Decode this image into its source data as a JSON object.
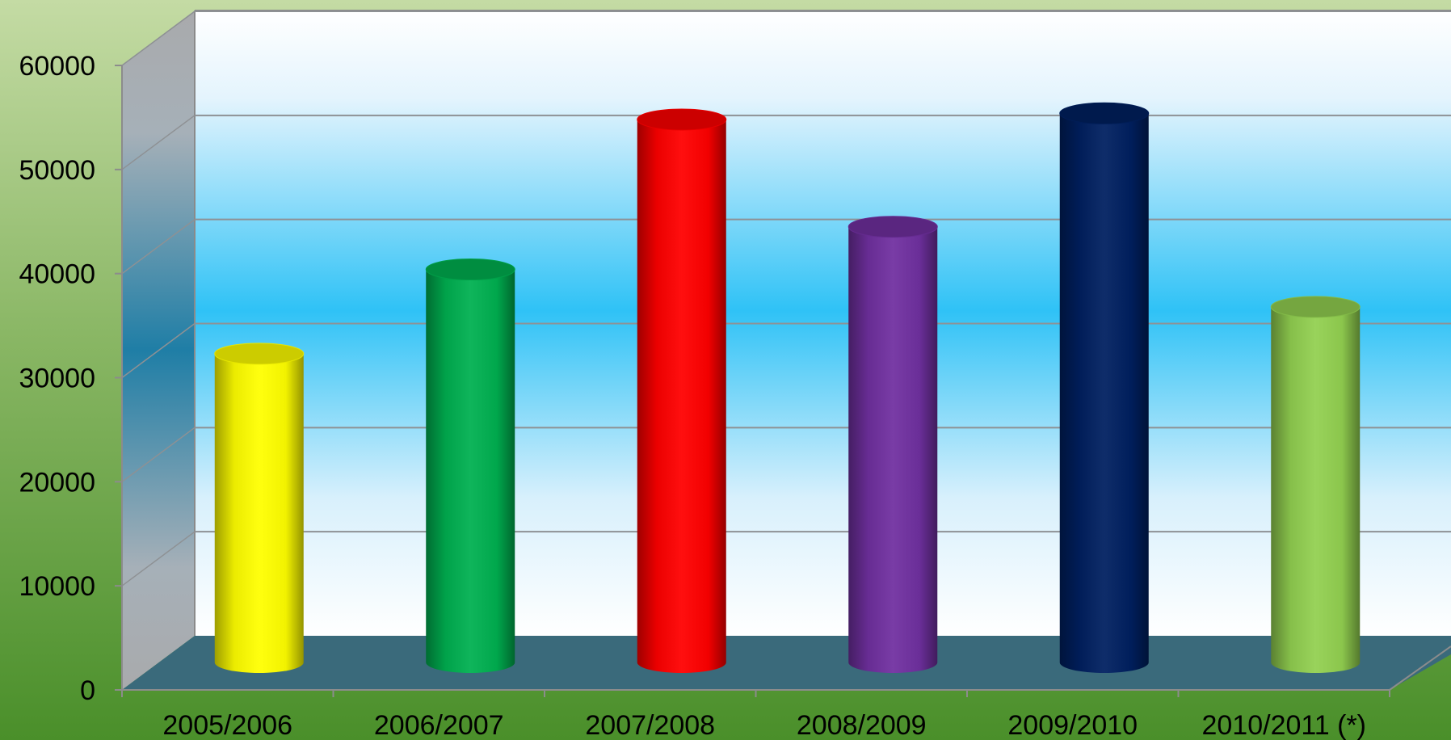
{
  "chart_data": {
    "type": "bar",
    "style": "3d-cylinder",
    "title": "",
    "xlabel": "",
    "ylabel": "",
    "categories": [
      "2005/2006",
      "2006/2007",
      "2007/2008",
      "2008/2009",
      "2009/2010",
      "2010/2011 (*)"
    ],
    "values": [
      29700,
      37800,
      52200,
      41900,
      52800,
      34200
    ],
    "ylim": [
      0,
      60000
    ],
    "yticks": [
      "0",
      "10000",
      "20000",
      "30000",
      "40000",
      "50000",
      "60000"
    ],
    "grid": true,
    "legend": "none",
    "colors": [
      "#ffff00",
      "#00b050",
      "#ff0000",
      "#7030a0",
      "#002060",
      "#92d050"
    ],
    "background_colors": {
      "outer_top": "#c4dba4",
      "outer_bottom": "#4a8f2a",
      "plot_top": "#ffffff",
      "plot_middle": "#2fc2f6",
      "floor": "#3a6a7b",
      "side_wall": "#a9aaac"
    }
  }
}
